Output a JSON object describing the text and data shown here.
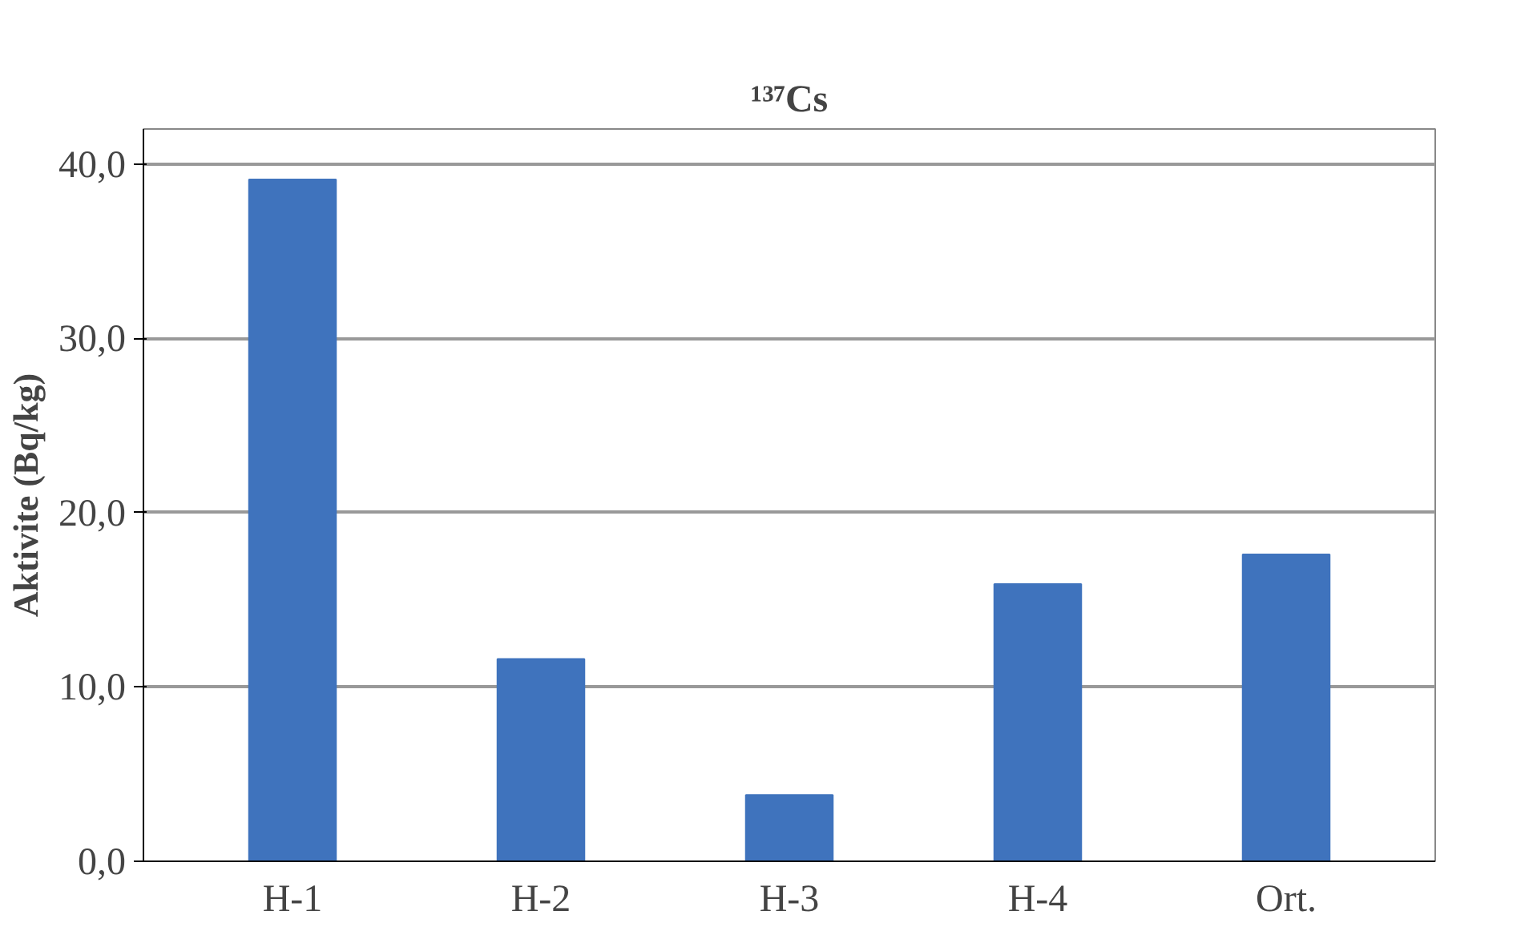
{
  "chart_data": {
    "type": "bar",
    "title": "¹³⁷Cs",
    "ylabel": "Aktivite (Bq/kg)",
    "categories": [
      "H-1",
      "H-2",
      "H-3",
      "H-4",
      "Ort."
    ],
    "values": [
      39.1,
      11.6,
      3.8,
      15.9,
      17.6
    ],
    "color": "#3f73bd",
    "ylim": [
      0,
      40
    ],
    "yticks": [
      {
        "value": 0,
        "label": "0,0"
      },
      {
        "value": 10,
        "label": "10,0"
      },
      {
        "value": 20,
        "label": "20,0"
      },
      {
        "value": 30,
        "label": "30,0"
      },
      {
        "value": 40,
        "label": "40,0"
      }
    ],
    "grid": "y"
  }
}
